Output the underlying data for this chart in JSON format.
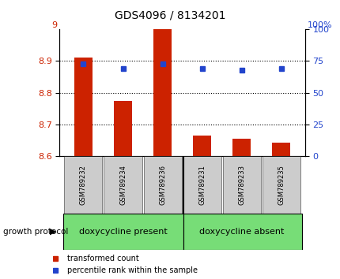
{
  "title": "GDS4096 / 8134201",
  "samples": [
    "GSM789232",
    "GSM789234",
    "GSM789236",
    "GSM789231",
    "GSM789233",
    "GSM789235"
  ],
  "bar_values": [
    8.91,
    8.775,
    9.0,
    8.665,
    8.655,
    8.642
  ],
  "bar_bottom": 8.6,
  "percentile_values": [
    73,
    69,
    73,
    69,
    68,
    69
  ],
  "bar_color": "#cc2200",
  "percentile_color": "#2244cc",
  "ylim_left": [
    8.6,
    9.0
  ],
  "ylim_right": [
    0,
    100
  ],
  "yticks_left": [
    8.6,
    8.7,
    8.8,
    8.9
  ],
  "yticks_right": [
    0,
    25,
    50,
    75,
    100
  ],
  "gridlines": [
    8.7,
    8.8,
    8.9
  ],
  "group1_label": "doxycycline present",
  "group2_label": "doxycycline absent",
  "group_label_prefix": "growth protocol",
  "group_color": "#77dd77",
  "legend_bar_label": "transformed count",
  "legend_pct_label": "percentile rank within the sample",
  "bg_color": "#ffffff",
  "tick_label_color_left": "#cc2200",
  "tick_label_color_right": "#2244cc",
  "bar_width": 0.45,
  "group_box_color": "#cccccc",
  "title_fontsize": 10,
  "tick_fontsize": 8,
  "sample_fontsize": 6,
  "group_fontsize": 8,
  "legend_fontsize": 7
}
